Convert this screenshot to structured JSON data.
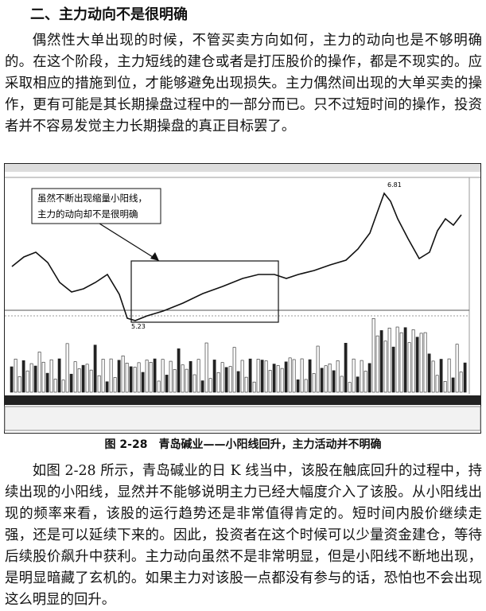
{
  "heading": "二、主力动向不是很明确",
  "paragraph_1": "偶然性大单出现的时候，不管买卖方向如何，主力的动向也是不够明确的。在这个阶段，主力短线的建仓或者是打压股价的操作，都是不现实的。应采取相应的措施到位，才能够避免出现损失。主力偶然间出现的大单买卖的操作，更有可能是其长期操盘过程中的一部分而已。只不过短时间的操作，投资者并不容易发觉主力长期操盘的真正目标罢了。",
  "figure": {
    "annotation": [
      "虽然不断出现缩量小阳线，",
      "主力的动向却不是很明确"
    ],
    "high_label": "6.81",
    "low_label": "5.23",
    "caption": "图 2-28　青岛碱业——小阳线回升，主力活动并不明确"
  },
  "paragraph_2": "如图 2-28 所示，青岛碱业的日 K 线当中，该股在触底回升的过程中，持续出现的小阳线，显然并不能够说明主力已经大幅度介入了该股。从小阳线出现的频率来看，该股的运行趋势还是非常值得肯定的。短时间内股价继续走强，还是可以延续下来的。因此，投资者在这个时候可以少量资金建仓，等待后续股价飙升中获利。主力动向虽然不是非常明显，但是小阳线不断地出现，是明显暗藏了玄机的。如果主力对该股一点都没有参与的话，恐怕也不会出现这么明显的回升。"
}
